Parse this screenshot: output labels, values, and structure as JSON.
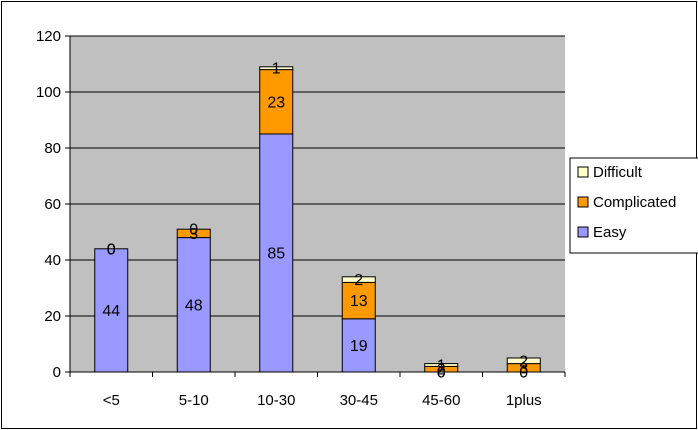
{
  "chart_data": {
    "type": "bar",
    "stacked": true,
    "categories": [
      "<5",
      "5-10",
      "10-30",
      "30-45",
      "45-60",
      "1plus"
    ],
    "series": [
      {
        "name": "Easy",
        "values": [
          44,
          48,
          85,
          19,
          0,
          0
        ],
        "color": "#9999ff"
      },
      {
        "name": "Complicated",
        "values": [
          0,
          3,
          23,
          13,
          2,
          3
        ],
        "color": "#ff9900"
      },
      {
        "name": "Difficult",
        "values": [
          0,
          0,
          1,
          2,
          1,
          2
        ],
        "color": "#ffffcc"
      }
    ],
    "data_labels": [
      [
        "44",
        "48",
        "85",
        "19",
        "0",
        "0"
      ],
      [
        "0",
        "3",
        "23",
        "13",
        "2",
        "3"
      ],
      [
        "0",
        "0",
        "1",
        "2",
        "1",
        "2"
      ]
    ],
    "y_ticks": [
      "0",
      "20",
      "40",
      "60",
      "80",
      "100",
      "120"
    ],
    "ylim": [
      0,
      120
    ],
    "grid": true,
    "legend_position": "right",
    "plot_background": "#c0c0c0",
    "title": "",
    "xlabel": "",
    "ylabel": ""
  }
}
